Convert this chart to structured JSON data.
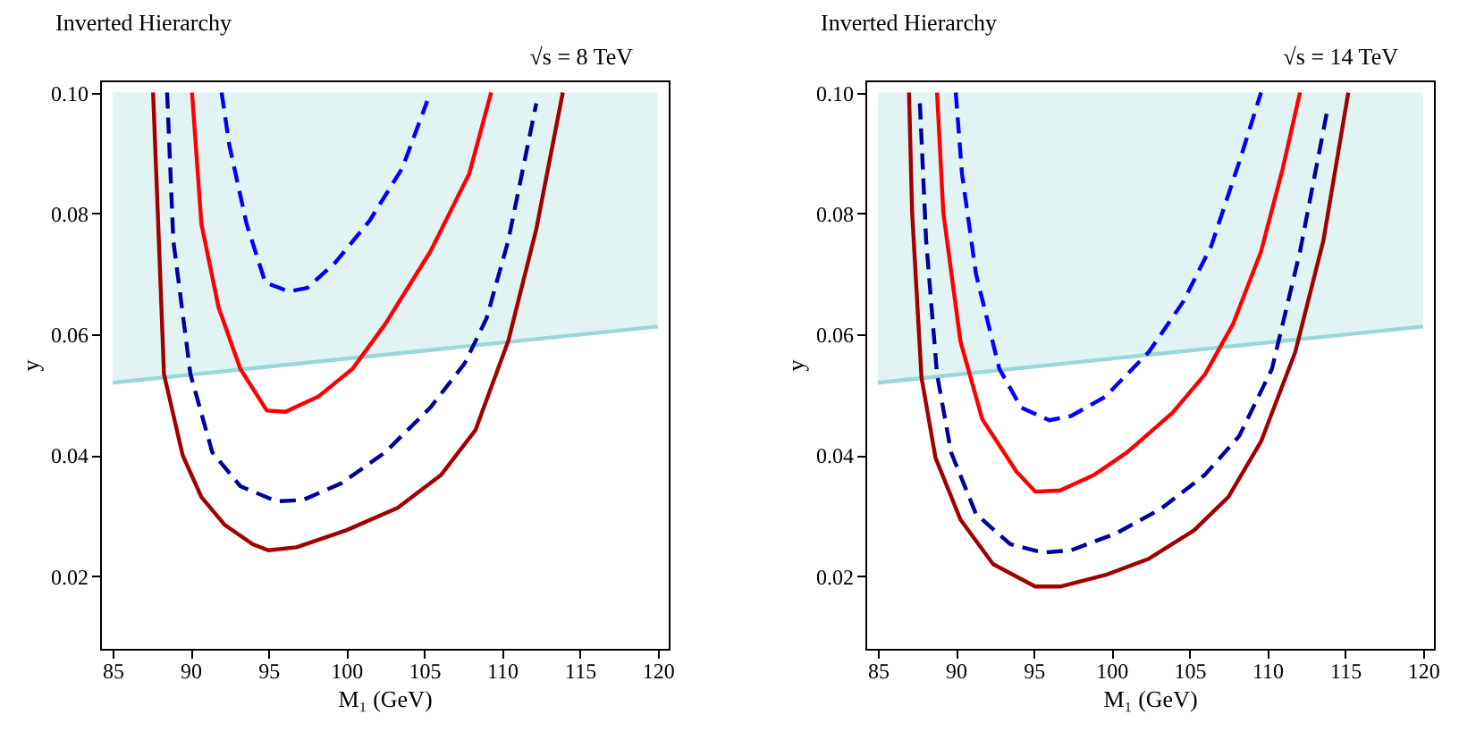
{
  "chart_data": [
    {
      "type": "line",
      "title": "Inverted Hierarchy",
      "annotations": [
        "√s = 8 TeV"
      ],
      "xlabel": "M₁ (GeV)",
      "ylabel": "y",
      "xlim": [
        84.2,
        120.7
      ],
      "ylim": [
        0.008,
        0.102
      ],
      "xticks": [
        85,
        90,
        95,
        100,
        105,
        110,
        115,
        120
      ],
      "yticks": [
        0.02,
        0.04,
        0.06,
        0.08,
        {
          "value": 0.1,
          "label": "0.10"
        }
      ],
      "grid": false,
      "series": [
        {
          "color": "#9ad8d8",
          "x": [
            85,
            120
          ],
          "values": [
            0.052,
            0.0613
          ],
          "lower": [
            0.052,
            0.0613
          ],
          "upper": [
            0.1,
            0.1
          ]
        },
        {
          "color": "#a00000",
          "x": [
            87.6,
            87.9,
            88.3,
            89.5,
            90.7,
            92.2,
            94.0,
            95.0,
            96.8,
            100.0,
            103.3,
            106.1,
            108.3,
            110.4,
            112.2,
            113.9
          ],
          "values": [
            0.1,
            0.0802,
            0.0534,
            0.04,
            0.0331,
            0.0285,
            0.0253,
            0.0243,
            0.0248,
            0.0276,
            0.0313,
            0.0368,
            0.0442,
            0.0589,
            0.0774,
            0.1
          ]
        },
        {
          "color": "#0000a0",
          "line_style": "dashed",
          "x": [
            88.5,
            88.9,
            90.0,
            91.4,
            93.2,
            95.5,
            97.2,
            99.7,
            102.5,
            105.4,
            107.6,
            109.0,
            110.4,
            112.2
          ],
          "values": [
            0.1,
            0.0755,
            0.0534,
            0.0405,
            0.0349,
            0.0324,
            0.0326,
            0.0354,
            0.0405,
            0.0479,
            0.0552,
            0.0626,
            0.0755,
            0.0982
          ]
        },
        {
          "color": "#ff0000",
          "x": [
            90.1,
            90.7,
            91.8,
            93.2,
            94.9,
            96.1,
            98.2,
            100.4,
            102.5,
            105.4,
            107.9,
            109.3
          ],
          "values": [
            0.1,
            0.0783,
            0.0645,
            0.0543,
            0.0474,
            0.0472,
            0.0497,
            0.0543,
            0.0617,
            0.0737,
            0.0866,
            0.1
          ]
        },
        {
          "color": "#0000ff",
          "line_style": "dashed",
          "x": [
            92.0,
            92.5,
            93.6,
            94.8,
            96.3,
            97.5,
            99.3,
            101.5,
            103.6,
            105.2
          ],
          "values": [
            0.1,
            0.0912,
            0.0783,
            0.0686,
            0.0671,
            0.0677,
            0.0719,
            0.0788,
            0.0875,
            0.0986
          ]
        }
      ]
    },
    {
      "type": "line",
      "title": "Inverted Hierarchy",
      "annotations": [
        "√s = 14 TeV"
      ],
      "xlabel": "M₁ (GeV)",
      "ylabel": "y",
      "xlim": [
        84.2,
        120.7
      ],
      "ylim": [
        0.008,
        0.102
      ],
      "xticks": [
        85,
        90,
        95,
        100,
        105,
        110,
        115,
        120
      ],
      "yticks": [
        0.02,
        0.04,
        0.06,
        0.08,
        {
          "value": 0.1,
          "label": "0.10"
        }
      ],
      "grid": false,
      "series": [
        {
          "color": "#9ad8d8",
          "x": [
            85,
            120
          ],
          "values": [
            0.052,
            0.0613
          ],
          "lower": [
            0.052,
            0.0613
          ],
          "upper": [
            0.1,
            0.1
          ]
        },
        {
          "color": "#a00000",
          "x": [
            87.0,
            87.2,
            87.8,
            88.7,
            90.3,
            92.4,
            95.1,
            96.7,
            99.6,
            102.4,
            105.3,
            107.5,
            109.6,
            111.8,
            113.6,
            115.2
          ],
          "values": [
            0.1,
            0.0802,
            0.0529,
            0.0396,
            0.0294,
            0.022,
            0.0183,
            0.0183,
            0.0202,
            0.0229,
            0.0276,
            0.0331,
            0.0423,
            0.0571,
            0.0755,
            0.1
          ]
        },
        {
          "color": "#0000a0",
          "line_style": "dashed",
          "x": [
            87.7,
            88.1,
            88.8,
            89.7,
            91.3,
            93.5,
            95.6,
            97.4,
            100.3,
            103.2,
            106.0,
            108.2,
            110.3,
            112.1,
            113.9
          ],
          "values": [
            0.0982,
            0.0755,
            0.0534,
            0.0405,
            0.0303,
            0.0253,
            0.0239,
            0.0243,
            0.0271,
            0.0312,
            0.0368,
            0.0432,
            0.0543,
            0.0737,
            0.0977
          ]
        },
        {
          "color": "#ff0000",
          "x": [
            88.8,
            89.2,
            90.3,
            91.7,
            93.9,
            95.1,
            96.7,
            98.9,
            101.0,
            103.9,
            106.0,
            107.8,
            109.6,
            111.0,
            112.1
          ],
          "values": [
            0.1,
            0.0802,
            0.0589,
            0.046,
            0.0373,
            0.034,
            0.0342,
            0.0368,
            0.0405,
            0.047,
            0.0534,
            0.0617,
            0.0737,
            0.0875,
            0.1
          ]
        },
        {
          "color": "#0000ff",
          "line_style": "dashed",
          "x": [
            90.0,
            90.4,
            91.3,
            92.8,
            94.2,
            96.0,
            97.4,
            99.6,
            102.4,
            104.6,
            106.4,
            108.2,
            109.6
          ],
          "values": [
            0.1,
            0.0866,
            0.07,
            0.0543,
            0.0479,
            0.0458,
            0.0465,
            0.0497,
            0.0571,
            0.0654,
            0.0746,
            0.0885,
            0.1
          ]
        }
      ]
    }
  ]
}
